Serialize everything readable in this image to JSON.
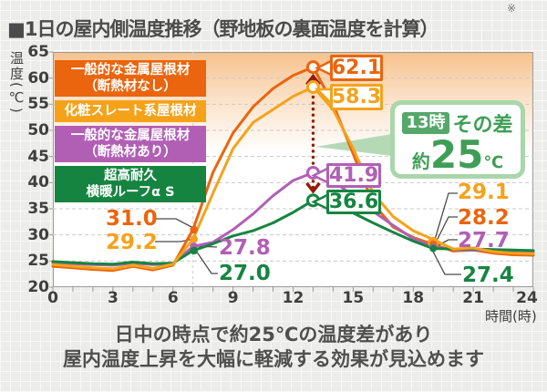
{
  "title": "■1日の屋内側温度推移（野地板の裏面温度を計算）",
  "note_mark": "※",
  "chart_data": {
    "type": "line",
    "x": [
      0,
      1,
      2,
      3,
      4,
      5,
      6,
      7,
      8,
      9,
      10,
      11,
      12,
      13,
      14,
      15,
      16,
      17,
      18,
      19,
      20,
      21,
      22,
      23,
      24
    ],
    "xlim": [
      0,
      24
    ],
    "ylim": [
      20,
      65
    ],
    "xticks": [
      0,
      3,
      6,
      9,
      12,
      15,
      18,
      21,
      24
    ],
    "yticks": [
      20,
      25,
      30,
      35,
      40,
      45,
      50,
      55,
      60,
      65
    ],
    "xlabel": "時間(時)",
    "ylabel": "温度(℃)",
    "grid": "horizontal-dashed",
    "legend_position": "top-left-inside",
    "series": [
      {
        "name": "一般的な金属屋根材（断熱材なし）",
        "color": "#ea650d",
        "values": [
          24.0,
          23.7,
          23.4,
          23.2,
          24.0,
          23.3,
          24.2,
          31.0,
          42.0,
          49.5,
          54.5,
          58.0,
          60.5,
          62.1,
          55.0,
          45.5,
          36.0,
          31.5,
          29.5,
          28.2,
          26.9,
          27.1,
          26.5,
          26.2,
          26.1
        ]
      },
      {
        "name": "化粧スレート系屋根材",
        "color": "#f5a21b",
        "values": [
          24.3,
          24.0,
          23.7,
          23.5,
          24.2,
          23.6,
          24.4,
          29.2,
          38.0,
          46.5,
          51.5,
          54.0,
          56.5,
          58.3,
          54.0,
          46.5,
          38.0,
          33.5,
          30.8,
          29.1,
          27.3,
          27.5,
          26.8,
          26.5,
          26.4
        ]
      },
      {
        "name": "一般的な金属屋根材（断熱材あり）",
        "color": "#b15fb5",
        "values": [
          24.7,
          24.5,
          24.3,
          24.2,
          24.6,
          24.3,
          24.5,
          27.8,
          28.6,
          31.0,
          34.0,
          37.5,
          40.4,
          41.9,
          40.3,
          37.5,
          34.5,
          31.8,
          29.3,
          27.7,
          27.2,
          27.1,
          27.0,
          26.9,
          26.8
        ]
      },
      {
        "name": "超高耐久 横暖ルーフα S",
        "color": "#168441",
        "values": [
          24.9,
          24.7,
          24.5,
          24.4,
          24.8,
          24.5,
          24.6,
          27.0,
          28.3,
          29.8,
          30.8,
          32.3,
          34.3,
          36.6,
          35.8,
          34.2,
          32.3,
          30.5,
          28.8,
          27.4,
          27.3,
          27.3,
          27.2,
          27.1,
          27.0
        ]
      }
    ]
  },
  "legend": {
    "items": [
      {
        "line1": "一般的な金属屋根材",
        "line2": "（断熱材なし）",
        "color": "#ea650d"
      },
      {
        "line1": "化粧スレート系屋根材",
        "line2": "",
        "color": "#f5a21b"
      },
      {
        "line1": "一般的な金属屋根材",
        "line2": "（断熱材あり）",
        "color": "#b15fb5"
      },
      {
        "line1": "超高耐久",
        "line2": "横暖ルーフα S",
        "color": "#168441"
      }
    ]
  },
  "annotations": {
    "peak": [
      {
        "value": "62.1",
        "v": 62.1,
        "h": 13,
        "color": "#ea650d"
      },
      {
        "value": "58.3",
        "v": 58.3,
        "h": 13,
        "color": "#f5a21b"
      },
      {
        "value": "41.9",
        "v": 41.9,
        "h": 13,
        "color": "#b15fb5"
      },
      {
        "value": "36.6",
        "v": 36.6,
        "h": 13,
        "color": "#168441"
      }
    ],
    "morning": [
      {
        "value": "31.0",
        "v": 31.0,
        "h": 7,
        "color": "#ea650d"
      },
      {
        "value": "29.2",
        "v": 29.2,
        "h": 7,
        "color": "#f5a21b"
      },
      {
        "value": "27.8",
        "v": 27.8,
        "h": 7,
        "color": "#b15fb5"
      },
      {
        "value": "27.0",
        "v": 27.0,
        "h": 7,
        "color": "#168441"
      }
    ],
    "evening": [
      {
        "value": "29.1",
        "v": 29.1,
        "h": 19,
        "color": "#f5a21b"
      },
      {
        "value": "28.2",
        "v": 28.2,
        "h": 19,
        "color": "#ea650d"
      },
      {
        "value": "27.7",
        "v": 27.7,
        "h": 19,
        "color": "#b15fb5"
      },
      {
        "value": "27.4",
        "v": 27.4,
        "h": 19,
        "color": "#168441"
      }
    ],
    "callout": {
      "time": "13時",
      "label": "その差",
      "prefix": "約",
      "value": "25",
      "unit": "℃",
      "text_color": "#3f9e56",
      "chip_bg": "#55a76a",
      "border_color": "#a9d6ab"
    },
    "diff_line_color": "#941c08"
  },
  "caption": {
    "line1": "日中の時点で約25℃の温度差があり",
    "line2": "屋内温度上昇を大幅に軽減する効果が見込めます"
  }
}
